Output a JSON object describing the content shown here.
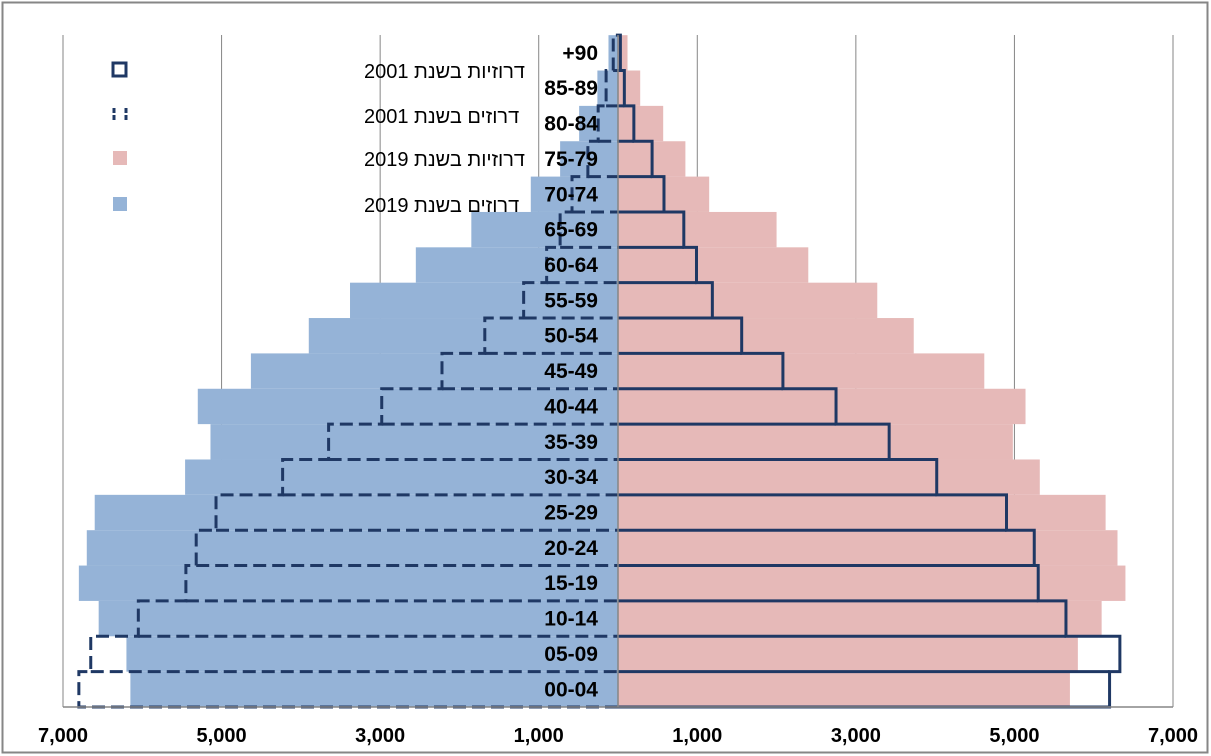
{
  "chart_data": {
    "type": "population-pyramid",
    "categories": [
      "00-04",
      "05-09",
      "10-14",
      "15-19",
      "20-24",
      "25-29",
      "30-34",
      "35-39",
      "40-44",
      "45-49",
      "50-54",
      "55-59",
      "60-64",
      "65-69",
      "70-74",
      "75-79",
      "80-84",
      "85-89",
      "+90"
    ],
    "series": [
      {
        "name": "דרוזיות בשנת 2001",
        "side": "right",
        "style": "outline-solid",
        "values": [
          6200,
          6330,
          5650,
          5300,
          5250,
          4900,
          4020,
          3420,
          2750,
          2080,
          1560,
          1190,
          990,
          830,
          580,
          430,
          200,
          80,
          30
        ]
      },
      {
        "name": "דרוזים בשנת 2001",
        "side": "left",
        "style": "outline-dashed",
        "values": [
          6800,
          6650,
          6050,
          5450,
          5320,
          5070,
          4230,
          3650,
          2980,
          2220,
          1680,
          1190,
          900,
          730,
          580,
          380,
          250,
          150,
          60
        ]
      },
      {
        "name": "דרוזיות בשנת 2019",
        "side": "right",
        "style": "filled",
        "values": [
          5700,
          5800,
          6100,
          6400,
          6300,
          6150,
          5320,
          4980,
          5140,
          4620,
          3730,
          3270,
          2400,
          2000,
          1150,
          850,
          570,
          280,
          120
        ]
      },
      {
        "name": "דרוזים בשנת 2019",
        "side": "left",
        "style": "filled",
        "values": [
          6150,
          6200,
          6550,
          6800,
          6700,
          6600,
          5460,
          5140,
          5300,
          4630,
          3900,
          3380,
          2550,
          1850,
          1100,
          730,
          490,
          260,
          120
        ]
      }
    ],
    "x_tick_labels": [
      "7,000",
      "5,000",
      "3,000",
      "1,000",
      "1,000",
      "3,000",
      "5,000",
      "7,000"
    ],
    "xlim": [
      -7000,
      7000
    ],
    "gridlines": "vertical",
    "legend": "top-left",
    "colors": {
      "women_2019": "#e6b9b8",
      "men_2019": "#95b3d7",
      "outline_2001": "#1f3864",
      "frame": "#868686",
      "grid": "#868686"
    }
  }
}
